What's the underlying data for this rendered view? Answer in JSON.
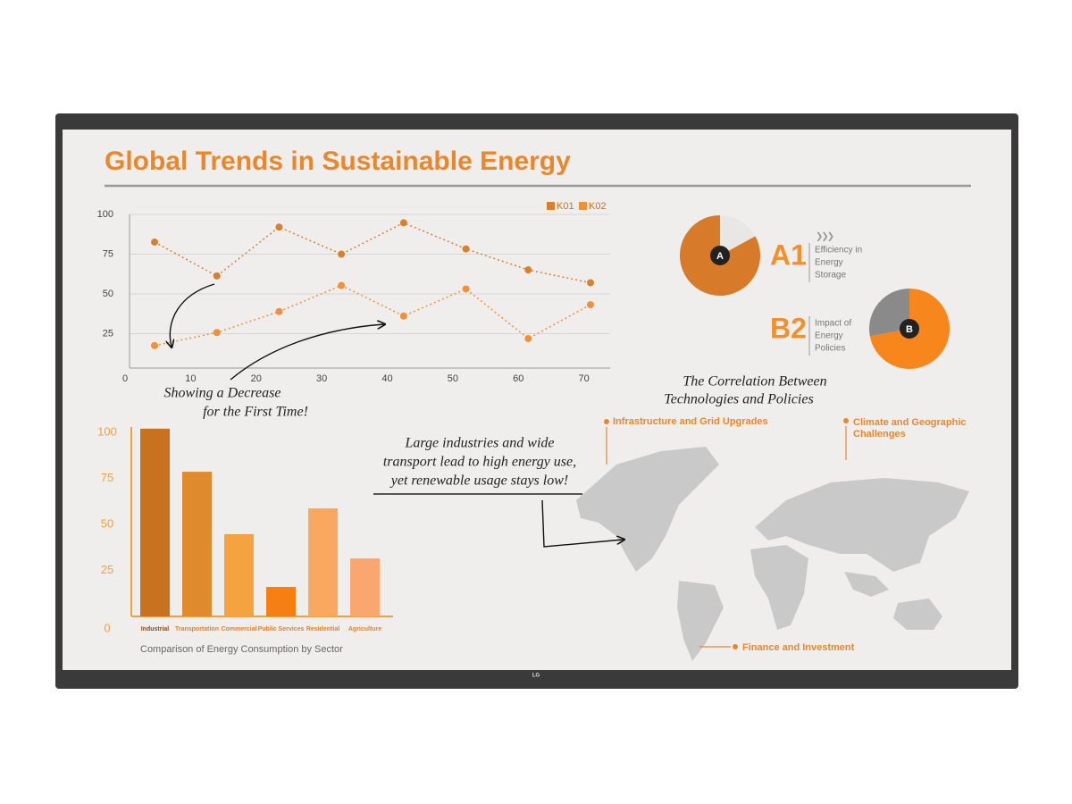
{
  "brand": "LG",
  "title": "Global Trends in Sustainable Energy",
  "chart_data": [
    {
      "type": "line",
      "x": [
        4.5,
        14,
        23.5,
        33,
        42.5,
        52,
        61.5,
        71
      ],
      "series": [
        {
          "name": "K01",
          "color": "#d9802f",
          "values": [
            82.6,
            61.3,
            92,
            75,
            94.7,
            78.3,
            65.1,
            57
          ]
        },
        {
          "name": "K02",
          "color": "#f0913a",
          "values": [
            17.5,
            25.7,
            38.9,
            55.3,
            36.1,
            53.1,
            21.9,
            43.2
          ]
        }
      ],
      "xlim": [
        0,
        74
      ],
      "xticks": [
        0,
        10,
        20,
        30,
        40,
        50,
        60,
        70
      ],
      "ylim": [
        0,
        100
      ],
      "yticks": [
        25,
        50,
        75,
        100
      ],
      "grid": true,
      "legend": "top-right",
      "annotation": [
        "Showing a Decrease",
        "for the First Time!"
      ]
    },
    {
      "type": "bar",
      "title": "Comparison of Energy Consumption by Sector",
      "categories": [
        "Industrial",
        "Transportation",
        "Commercial",
        "Public Services",
        "Residential",
        "Agriculture"
      ],
      "values": [
        102,
        78.6,
        44.7,
        16,
        58.7,
        31.5
      ],
      "colors": [
        "#c8711f",
        "#e08a2e",
        "#f5a340",
        "#f57f12",
        "#f9a860",
        "#f9a670"
      ],
      "ylim": [
        0,
        100
      ],
      "yticks": [
        0,
        25,
        50,
        75,
        100
      ]
    },
    {
      "type": "pie",
      "label": "A",
      "code": "A1",
      "description": [
        "Efficiency in",
        "Energy",
        "Storage"
      ],
      "values": [
        17,
        83
      ],
      "colors": [
        "#e9e7e6",
        "#d77a2a"
      ]
    },
    {
      "type": "pie",
      "label": "B",
      "code": "B2",
      "description": [
        "Impact of",
        "Energy",
        "Policies"
      ],
      "values": [
        72,
        28
      ],
      "colors": [
        "#f7861c",
        "#8a8a8a"
      ]
    }
  ],
  "map": {
    "title": [
      "The Correlation Between",
      "Technologies and Policies"
    ],
    "note": [
      "Large industries and wide",
      "transport lead to high energy use,",
      "yet renewable usage stays low!"
    ],
    "labels": [
      {
        "lines": [
          "Infrastructure and Grid Upgrades"
        ]
      },
      {
        "lines": [
          "Climate and Geographic",
          "Challenges"
        ]
      },
      {
        "lines": [
          "Finance and Investment"
        ]
      }
    ]
  }
}
